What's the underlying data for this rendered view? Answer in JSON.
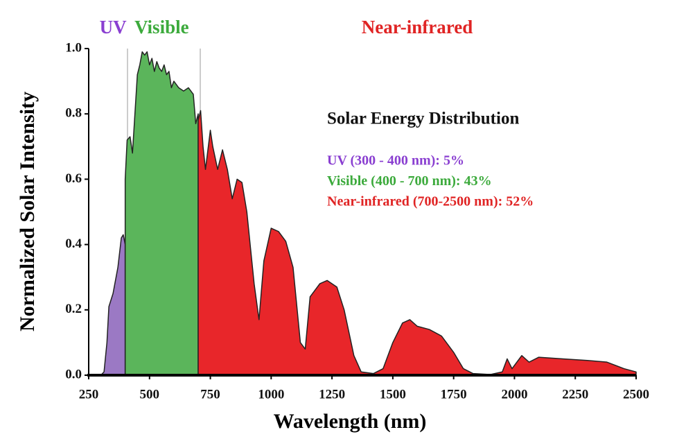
{
  "chart_data": {
    "type": "area",
    "x_label": "Wavelength (nm)",
    "y_label": "Normalized Solar Intensity",
    "xlim": [
      250,
      2500
    ],
    "ylim": [
      0,
      1
    ],
    "xticks": [
      250,
      500,
      750,
      1000,
      1250,
      1500,
      1750,
      2000,
      2250,
      2500
    ],
    "yticks": [
      {
        "value": 0,
        "label": "0.0"
      },
      0.2,
      0.4,
      0.6,
      0.8,
      {
        "value": 1,
        "label": "1.0"
      }
    ],
    "annotation_title": "Solar Energy Distribution",
    "annotations": [
      {
        "text": "UV (300 - 400 nm): 5%",
        "color": "#8a3fd1"
      },
      {
        "text": "Visible (400 - 700 nm): 43%",
        "color": "#3caa3c"
      },
      {
        "text": "Near-infrared (700-2500 nm): 52%",
        "color": "#e02424"
      }
    ],
    "series": [
      {
        "name": "UV",
        "color": "#9b79c4",
        "label_color": "#8a3fd1",
        "x": [
          300,
          313,
          325,
          333,
          350,
          370,
          384,
          392,
          400
        ],
        "values": [
          0,
          0.01,
          0.1,
          0.21,
          0.25,
          0.33,
          0.42,
          0.43,
          0.4
        ]
      },
      {
        "name": "Visible",
        "color": "#5bb55b",
        "label_color": "#3caa3c",
        "x": [
          400,
          408,
          420,
          430,
          440,
          450,
          460,
          470,
          480,
          490,
          500,
          510,
          520,
          530,
          540,
          550,
          560,
          570,
          580,
          590,
          600,
          620,
          640,
          660,
          680,
          690,
          700
        ],
        "values": [
          0.6,
          0.72,
          0.73,
          0.68,
          0.8,
          0.92,
          0.95,
          0.99,
          0.98,
          0.99,
          0.95,
          0.97,
          0.93,
          0.96,
          0.94,
          0.93,
          0.95,
          0.92,
          0.93,
          0.88,
          0.9,
          0.88,
          0.87,
          0.88,
          0.86,
          0.77,
          0.8
        ]
      },
      {
        "name": "Near-infrared",
        "color": "#e8262a",
        "label_color": "#e02424",
        "x": [
          700,
          710,
          720,
          730,
          750,
          760,
          780,
          800,
          820,
          840,
          860,
          880,
          900,
          930,
          950,
          970,
          1000,
          1030,
          1060,
          1090,
          1120,
          1140,
          1160,
          1200,
          1230,
          1270,
          1300,
          1340,
          1370,
          1420,
          1460,
          1500,
          1540,
          1570,
          1600,
          1650,
          1700,
          1750,
          1790,
          1830,
          1900,
          1950,
          1970,
          1990,
          2030,
          2060,
          2100,
          2200,
          2300,
          2380,
          2450,
          2500
        ],
        "values": [
          0.78,
          0.81,
          0.7,
          0.63,
          0.75,
          0.7,
          0.63,
          0.69,
          0.63,
          0.54,
          0.6,
          0.59,
          0.5,
          0.28,
          0.17,
          0.35,
          0.45,
          0.44,
          0.41,
          0.33,
          0.1,
          0.08,
          0.24,
          0.28,
          0.29,
          0.27,
          0.2,
          0.06,
          0.01,
          0.005,
          0.02,
          0.1,
          0.16,
          0.17,
          0.15,
          0.14,
          0.12,
          0.07,
          0.02,
          0.005,
          0.002,
          0.01,
          0.05,
          0.02,
          0.06,
          0.04,
          0.055,
          0.05,
          0.045,
          0.04,
          0.02,
          0.01
        ]
      }
    ]
  }
}
